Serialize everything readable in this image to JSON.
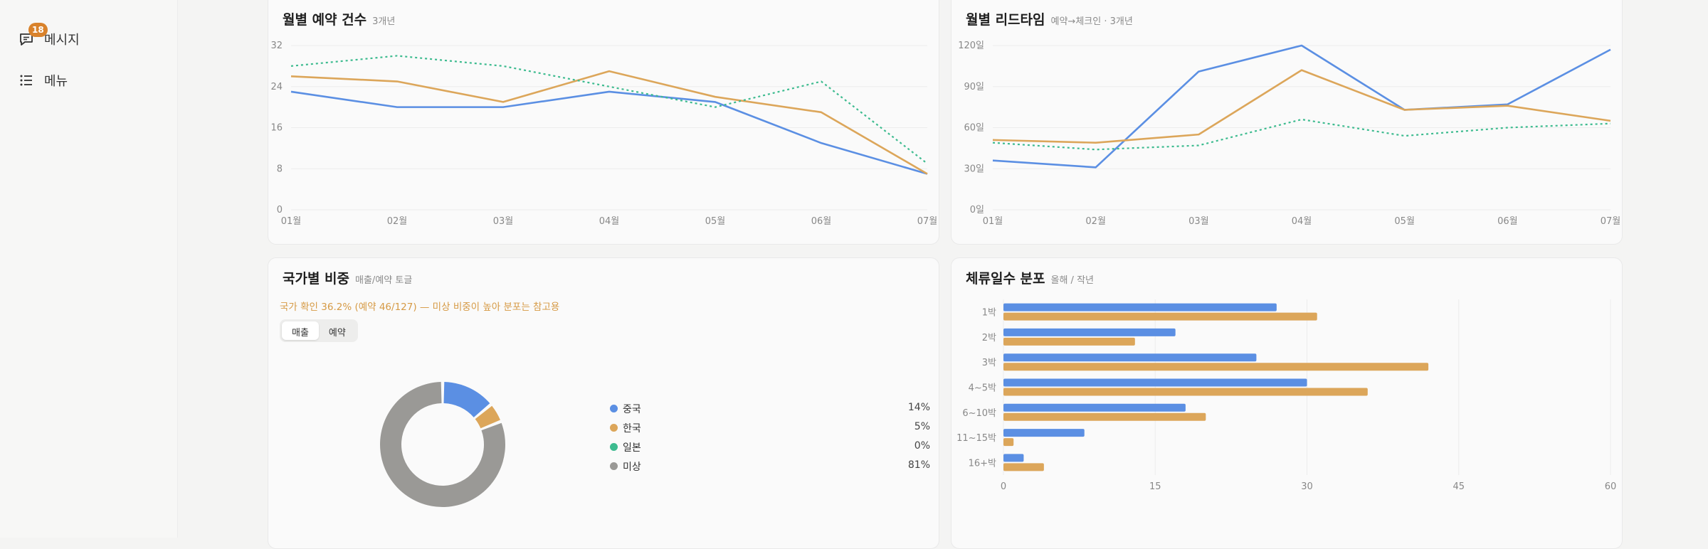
{
  "sidebar": {
    "items": [
      {
        "label": "메시지",
        "badge": "18",
        "icon": "message-icon"
      },
      {
        "label": "메뉴",
        "icon": "list-icon"
      }
    ]
  },
  "colors": {
    "blue": "#5b8fe3",
    "orange": "#dca65a",
    "green": "#3dbb8f",
    "gray": "#9a9996",
    "grid": "#ececec",
    "axis": "#888888"
  },
  "cards": {
    "bookings": {
      "title": "월별 예약 건수",
      "subtitle": "3개년"
    },
    "leadtime": {
      "title": "월별 리드타임",
      "subtitle": "예약→체크인 · 3개년"
    },
    "country": {
      "title": "국가별 비중",
      "subtitle": "매출/예약 토글",
      "note": "국가 확인 36.2% (예약 46/127) — 미상 비중이 높아 분포는 참고용",
      "toggle": [
        "매출",
        "예약"
      ]
    },
    "stay": {
      "title": "체류일수 분포",
      "subtitle": "올해 / 작년"
    }
  },
  "chart_data": [
    {
      "type": "line",
      "title": "월별 예약 건수",
      "x": [
        "01월",
        "02월",
        "03월",
        "04월",
        "05월",
        "06월",
        "07월"
      ],
      "yticks": [
        "0",
        "8",
        "16",
        "24",
        "32"
      ],
      "ylim": [
        0,
        32
      ],
      "series": [
        {
          "color": "#5b8fe3",
          "style": "solid",
          "values": [
            23,
            20,
            20,
            23,
            21,
            13,
            7
          ]
        },
        {
          "color": "#dca65a",
          "style": "solid",
          "values": [
            26,
            25,
            21,
            27,
            22,
            19,
            7
          ]
        },
        {
          "color": "#3dbb8f",
          "style": "dotted",
          "values": [
            28,
            30,
            28,
            24,
            20,
            25,
            9
          ]
        }
      ]
    },
    {
      "type": "line",
      "title": "월별 리드타임",
      "x": [
        "01월",
        "02월",
        "03월",
        "04월",
        "05월",
        "06월",
        "07월"
      ],
      "yticks": [
        "0일",
        "30일",
        "60일",
        "90일",
        "120일"
      ],
      "ylim": [
        0,
        120
      ],
      "series": [
        {
          "color": "#5b8fe3",
          "style": "solid",
          "values": [
            36,
            31,
            101,
            120,
            73,
            77,
            117
          ]
        },
        {
          "color": "#dca65a",
          "style": "solid",
          "values": [
            51,
            49,
            55,
            102,
            73,
            76,
            65
          ]
        },
        {
          "color": "#3dbb8f",
          "style": "dotted",
          "values": [
            49,
            44,
            47,
            66,
            54,
            60,
            63
          ]
        }
      ]
    },
    {
      "type": "pie",
      "title": "국가별 비중",
      "slices": [
        {
          "label": "중국",
          "value": 14,
          "display": "14%",
          "color": "#5b8fe3"
        },
        {
          "label": "한국",
          "value": 5,
          "display": "5%",
          "color": "#dca65a"
        },
        {
          "label": "일본",
          "value": 0,
          "display": "0%",
          "color": "#3dbb8f"
        },
        {
          "label": "미상",
          "value": 81,
          "display": "81%",
          "color": "#9a9996"
        }
      ]
    },
    {
      "type": "bar",
      "orientation": "horizontal",
      "title": "체류일수 분포",
      "categories": [
        "1박",
        "2박",
        "3박",
        "4~5박",
        "6~10박",
        "11~15박",
        "16+박"
      ],
      "xticks": [
        "0",
        "15",
        "30",
        "45",
        "60"
      ],
      "xlim": [
        0,
        60
      ],
      "series": [
        {
          "color": "#5b8fe3",
          "values": [
            27,
            17,
            25,
            30,
            18,
            8,
            2
          ]
        },
        {
          "color": "#dca65a",
          "values": [
            31,
            13,
            42,
            36,
            20,
            1,
            4
          ]
        }
      ]
    }
  ]
}
